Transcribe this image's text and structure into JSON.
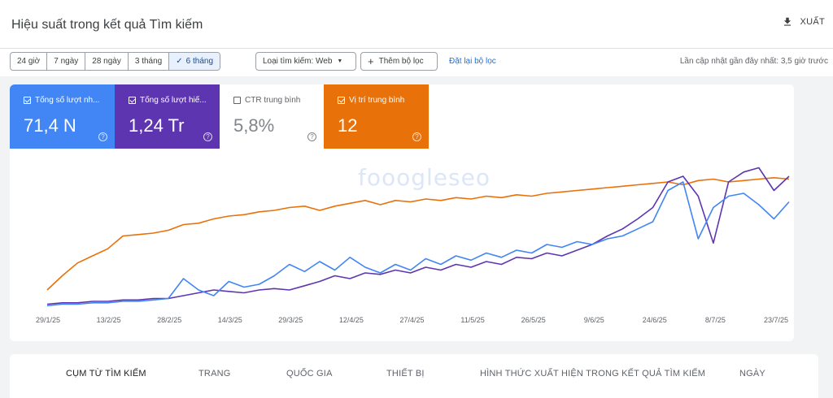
{
  "header": {
    "title": "Hiệu suất trong kết quả Tìm kiếm",
    "export_label": "XUẤT"
  },
  "toolbar": {
    "ranges": [
      {
        "label": "24 giờ",
        "active": false
      },
      {
        "label": "7 ngày",
        "active": false
      },
      {
        "label": "28 ngày",
        "active": false
      },
      {
        "label": "3 tháng",
        "active": false
      },
      {
        "label": "6 tháng",
        "active": true
      }
    ],
    "search_type": "Loại tìm kiếm: Web",
    "add_filter": "Thêm bộ lọc",
    "reset_filters": "Đặt lại bộ lọc",
    "last_update": "Lần cập nhật gần đây nhất: 3,5 giờ trước"
  },
  "metrics": [
    {
      "label": "Tổng số lượt nh...",
      "value": "71,4 N",
      "checked": true,
      "color": "#4285f4"
    },
    {
      "label": "Tổng số lượt hiể...",
      "value": "1,24 Tr",
      "checked": true,
      "color": "#5e35b1"
    },
    {
      "label": "CTR trung bình",
      "value": "5,8%",
      "checked": false,
      "color": "#ffffff"
    },
    {
      "label": "Vị trí trung bình",
      "value": "12",
      "checked": true,
      "color": "#e8710a"
    }
  ],
  "watermark": "fooogleseo",
  "chart_data": {
    "type": "line",
    "x_tick_labels": [
      "29/1/25",
      "13/2/25",
      "28/2/25",
      "14/3/25",
      "29/3/25",
      "12/4/25",
      "27/4/25",
      "11/5/25",
      "26/5/25",
      "9/6/25",
      "24/6/25",
      "8/7/25",
      "23/7/25"
    ],
    "y_axis_labels_shown": false,
    "grid": false,
    "series": [
      {
        "color": "#e8710a",
        "values": [
          12,
          22,
          31,
          36,
          41,
          50,
          51,
          52,
          54,
          58,
          59,
          62,
          64,
          65,
          67,
          68,
          70,
          71,
          68,
          71,
          73,
          75,
          72,
          75,
          74,
          76,
          75,
          77,
          76,
          78,
          77,
          79,
          78,
          80,
          81,
          82,
          83,
          84,
          85,
          86,
          87,
          88,
          86,
          89,
          90,
          88,
          89,
          90,
          91,
          90
        ]
      },
      {
        "color": "#5e35b1",
        "values": [
          2,
          3,
          3,
          4,
          4,
          5,
          5,
          6,
          6,
          8,
          10,
          12,
          11,
          10,
          12,
          13,
          12,
          15,
          18,
          22,
          20,
          24,
          23,
          26,
          24,
          28,
          26,
          30,
          28,
          32,
          30,
          35,
          34,
          38,
          36,
          40,
          44,
          50,
          55,
          62,
          70,
          88,
          92,
          78,
          45,
          88,
          95,
          98,
          82,
          92
        ]
      },
      {
        "color": "#4285f4",
        "values": [
          1,
          2,
          2,
          3,
          3,
          4,
          4,
          5,
          6,
          20,
          12,
          8,
          18,
          14,
          16,
          22,
          30,
          25,
          32,
          26,
          35,
          28,
          24,
          30,
          26,
          34,
          30,
          36,
          33,
          38,
          35,
          40,
          38,
          44,
          42,
          46,
          44,
          48,
          50,
          55,
          60,
          82,
          88,
          48,
          70,
          78,
          80,
          72,
          62,
          74
        ]
      }
    ]
  },
  "tabs": [
    {
      "label": "CỤM TỪ TÌM KIẾM",
      "active": true
    },
    {
      "label": "TRANG",
      "active": false
    },
    {
      "label": "QUỐC GIA",
      "active": false
    },
    {
      "label": "THIẾT BỊ",
      "active": false
    },
    {
      "label": "HÌNH THỨC XUẤT HIỆN TRONG KẾT QUẢ TÌM KIẾM",
      "active": false
    },
    {
      "label": "NGÀY",
      "active": false
    }
  ]
}
